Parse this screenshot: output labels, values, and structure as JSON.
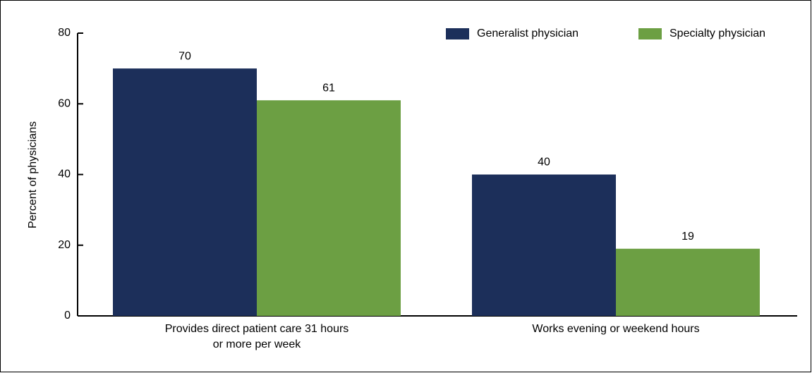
{
  "chart_data": {
    "type": "bar",
    "categories": [
      "Provides direct patient care 31 hours or more per week",
      "Works evening or weekend hours"
    ],
    "series": [
      {
        "name": "Generalist physician",
        "color": "#1c2f5a",
        "values": [
          70,
          40
        ]
      },
      {
        "name": "Specialty physician",
        "color": "#6c9f43",
        "values": [
          61,
          19
        ]
      }
    ],
    "y_label": "Percent of physicians",
    "ylim": [
      0,
      80
    ],
    "yticks": [
      0,
      20,
      40,
      60,
      80
    ],
    "legend": "top-right"
  }
}
